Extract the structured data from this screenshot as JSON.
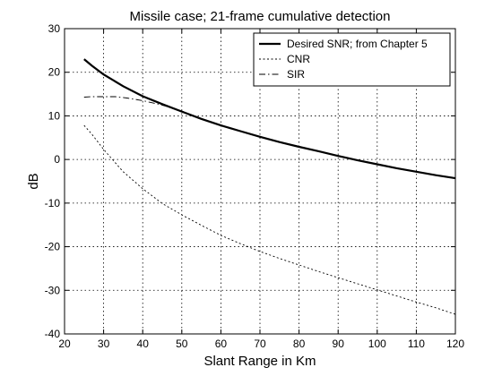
{
  "chart_data": {
    "type": "line",
    "title": "Missile case; 21-frame cumulative detection",
    "xlabel": "Slant Range in Km",
    "ylabel": "dB",
    "xlim": [
      20,
      120
    ],
    "ylim": [
      -40,
      30
    ],
    "xticks": [
      20,
      30,
      40,
      50,
      60,
      70,
      80,
      90,
      100,
      110,
      120
    ],
    "yticks": [
      -40,
      -30,
      -20,
      -10,
      0,
      10,
      20,
      30
    ],
    "grid": true,
    "grid_style": "dotted",
    "legend_position": "top-right",
    "series": [
      {
        "name": "Desired SNR; from Chapter 5",
        "line_style": "solid",
        "line_weight": "thick",
        "color": "#000000",
        "x": [
          25,
          27,
          30,
          35,
          40,
          45,
          50,
          55,
          60,
          65,
          70,
          75,
          80,
          85,
          90,
          95,
          100,
          105,
          110,
          115,
          120
        ],
        "y": [
          23,
          21.5,
          19.5,
          16.8,
          14.5,
          12.7,
          11,
          9.3,
          7.8,
          6.5,
          5.2,
          4,
          2.9,
          1.9,
          0.8,
          -0.2,
          -1.1,
          -2,
          -2.8,
          -3.6,
          -4.3
        ]
      },
      {
        "name": "CNR",
        "line_style": "dotted",
        "line_weight": "thin",
        "color": "#000000",
        "x": [
          25,
          27,
          30,
          35,
          40,
          45,
          50,
          55,
          60,
          65,
          70,
          75,
          80,
          85,
          90,
          95,
          100,
          105,
          110,
          115,
          120
        ],
        "y": [
          7.8,
          5.8,
          2.3,
          -2.8,
          -6.7,
          -10.1,
          -12.7,
          -15.1,
          -17.4,
          -19.3,
          -21.1,
          -22.7,
          -24.2,
          -25.7,
          -27.1,
          -28.5,
          -29.9,
          -31.3,
          -32.7,
          -34.0,
          -35.5
        ]
      },
      {
        "name": "SIR",
        "line_style": "dashdot",
        "line_weight": "thin",
        "color": "#000000",
        "x": [
          25,
          27,
          30,
          33,
          36,
          40,
          44,
          48,
          51
        ],
        "y": [
          14.3,
          14.4,
          14.4,
          14.4,
          14.1,
          13.5,
          12.7,
          11.7,
          10.8
        ]
      }
    ]
  }
}
